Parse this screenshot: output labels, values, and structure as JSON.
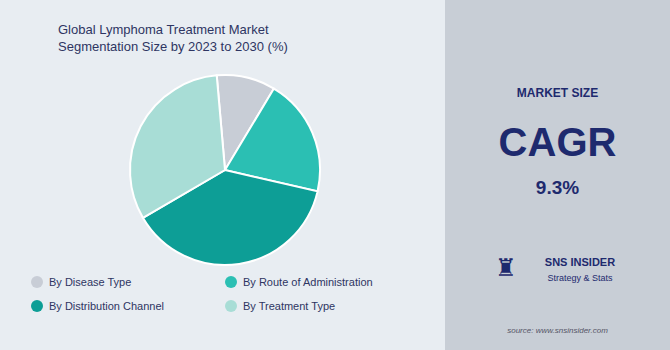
{
  "chart_data": {
    "type": "pie",
    "title": "Global Lymphoma Treatment Market\nSegmentation Size by 2023 to 2030 (%)",
    "categories": [
      "By Disease Type",
      "By Route of Administration",
      "By Distribution Channel",
      "By Treatment Type"
    ],
    "values": [
      10,
      20,
      38,
      32
    ],
    "colors": [
      "#c8cdd6",
      "#2bbfb3",
      "#0d9e96",
      "#a8ddd6"
    ],
    "legend": "bottom",
    "annotations": [
      "MARKET SIZE",
      "CAGR",
      "9.3%",
      "♜",
      "SNS INSIDER",
      "Strategy & Stats",
      "source: www.snsinsider.com"
    ]
  }
}
